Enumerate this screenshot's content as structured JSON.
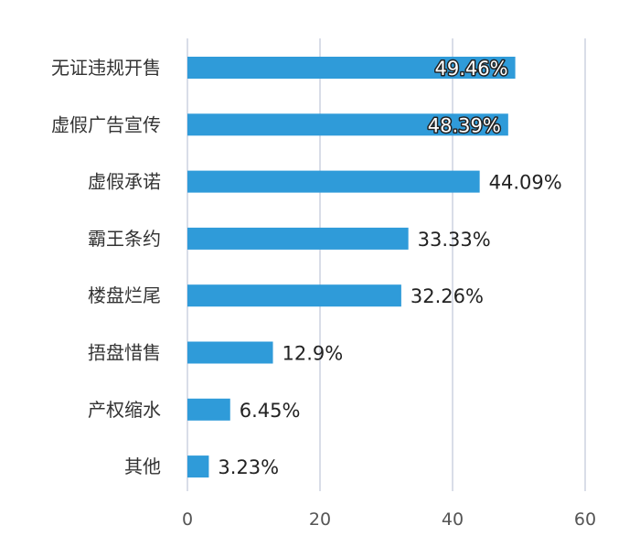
{
  "chart_data": {
    "type": "bar",
    "orientation": "horizontal",
    "categories": [
      "无证违规开售",
      "虚假广告宣传",
      "虚假承诺",
      "霸王条约",
      "楼盘烂尾",
      "捂盘惜售",
      "产权缩水",
      "其他"
    ],
    "values": [
      49.46,
      48.39,
      44.09,
      33.33,
      32.26,
      12.9,
      6.45,
      3.23
    ],
    "data_labels": [
      "49.46%",
      "48.39%",
      "44.09%",
      "33.33%",
      "32.26%",
      "12.9%",
      "6.45%",
      "3.23%"
    ],
    "title": "",
    "xlabel": "",
    "ylabel": "",
    "xlim": [
      0,
      60
    ],
    "xticks": [
      0,
      20,
      40,
      60
    ],
    "xtick_labels": [
      "0",
      "20",
      "40",
      "60"
    ],
    "grid": "vertical",
    "legend": "none",
    "bar_color": "#2f9bd9",
    "grid_color": "#d9dde8"
  }
}
